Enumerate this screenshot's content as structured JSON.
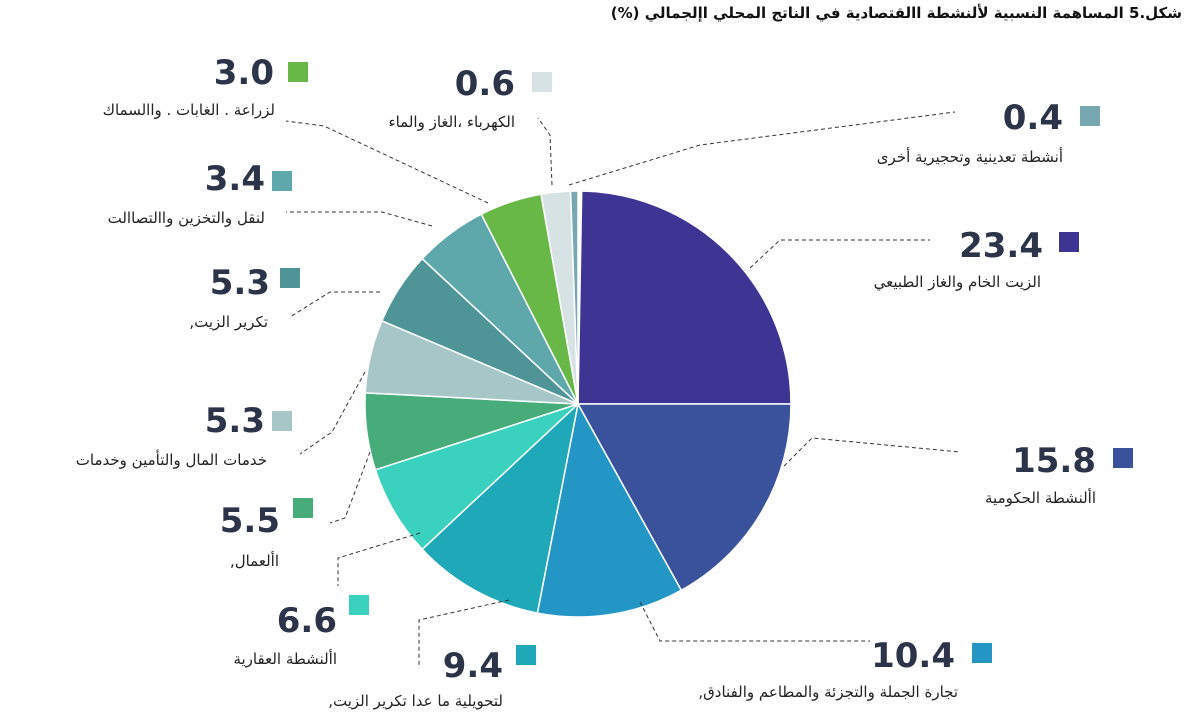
{
  "chart_data": {
    "type": "pie",
    "title": "شكل.5 المساهمة النسبية لألنشطة االقتصادية في الناتج المحلي اإلجمالي (%)",
    "slices": [
      {
        "label": "الزيت الخام والغاز الطبيعي",
        "value_text": "23.4",
        "value": 23.4,
        "color": "#3e3494"
      },
      {
        "label": "األنشطة الحكومية",
        "value_text": "15.8",
        "value": 15.8,
        "color": "#3a529c"
      },
      {
        "label": "تجارة الجملة والتجزئة والمطاعم والفنادق,",
        "value_text": "10.4",
        "value": 10.4,
        "color": "#2496c6"
      },
      {
        "label": "لتحويلية ما عدا تكرير الزيت,",
        "value_text": "9.4",
        "value": 9.4,
        "color": "#1fa8b8"
      },
      {
        "label": "األنشطة العقارية",
        "value_text": "6.6",
        "value": 6.6,
        "color": "#3ad2bf"
      },
      {
        "label": "األعمال,",
        "value_text": "5.5",
        "value": 5.5,
        "color": "#46ad7a"
      },
      {
        "label": "خدمات المال والتأمين وخدمات",
        "value_text": "5.3",
        "value": 5.3,
        "color": "#a6c6c8"
      },
      {
        "label": "تكرير الزيت,",
        "value_text": "5.3",
        "value": 5.3,
        "color": "#4f9598"
      },
      {
        "label": "لنقل والتخزين واالتصاالت",
        "value_text": "3.4",
        "value": 3.4,
        "color": "#5ea8ac"
      },
      {
        "label": "لزراعة . الغابات . واالسماك",
        "value_text": "3.0",
        "value": 3.0,
        "color": "#67b846"
      },
      {
        "label": "الكهرباء ،الغاز والماء",
        "value_text": "0.6",
        "value": 0.6,
        "color": "#d6e2e4"
      },
      {
        "label": "أنشطة تعدينية وتحجيرية أخرى",
        "value_text": "0.4",
        "value": 0.4,
        "color": "#77a8b2"
      }
    ]
  }
}
